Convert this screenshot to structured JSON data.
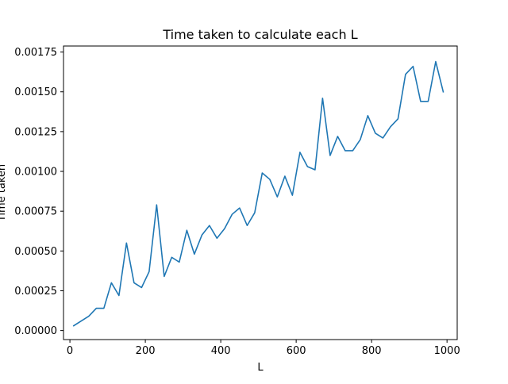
{
  "chart_data": {
    "type": "line",
    "title": "Time taken to calculate each L",
    "xlabel": "L",
    "ylabel": "Time taken",
    "xlim": [
      -17,
      1027
    ],
    "ylim": [
      -5.67e-05,
      0.0017878
    ],
    "xticks": [
      0,
      200,
      400,
      600,
      800,
      1000
    ],
    "xtick_labels": [
      "0",
      "200",
      "400",
      "600",
      "800",
      "1000"
    ],
    "yticks": [
      0,
      0.00025,
      0.0005,
      0.00075,
      0.001,
      0.00125,
      0.0015,
      0.00175
    ],
    "ytick_labels": [
      "0.00000",
      "0.00025",
      "0.00050",
      "0.00075",
      "0.00100",
      "0.00125",
      "0.00150",
      "0.00175"
    ],
    "grid": false,
    "series": [
      {
        "color": "#1f77b4",
        "x": [
          10,
          30,
          50,
          70,
          90,
          110,
          130,
          150,
          170,
          190,
          210,
          230,
          250,
          270,
          290,
          310,
          330,
          350,
          370,
          390,
          410,
          430,
          450,
          470,
          490,
          510,
          530,
          550,
          570,
          590,
          610,
          630,
          650,
          670,
          690,
          710,
          730,
          750,
          770,
          790,
          810,
          830,
          850,
          870,
          890,
          910,
          930,
          950,
          970,
          990
        ],
        "y": [
          3e-05,
          6e-05,
          9e-05,
          0.00014,
          0.00014,
          0.0003,
          0.00022,
          0.00055,
          0.0003,
          0.00027,
          0.00037,
          0.00079,
          0.00034,
          0.00046,
          0.00043,
          0.00063,
          0.00048,
          0.0006,
          0.00066,
          0.00058,
          0.00064,
          0.00073,
          0.00077,
          0.00066,
          0.00074,
          0.00099,
          0.00095,
          0.00084,
          0.00097,
          0.00085,
          0.00112,
          0.00103,
          0.00101,
          0.00146,
          0.0011,
          0.00122,
          0.00113,
          0.00113,
          0.0012,
          0.00135,
          0.00124,
          0.00121,
          0.00128,
          0.00133,
          0.00161,
          0.00166,
          0.00144,
          0.00144,
          0.00169,
          0.0015
        ]
      }
    ]
  }
}
